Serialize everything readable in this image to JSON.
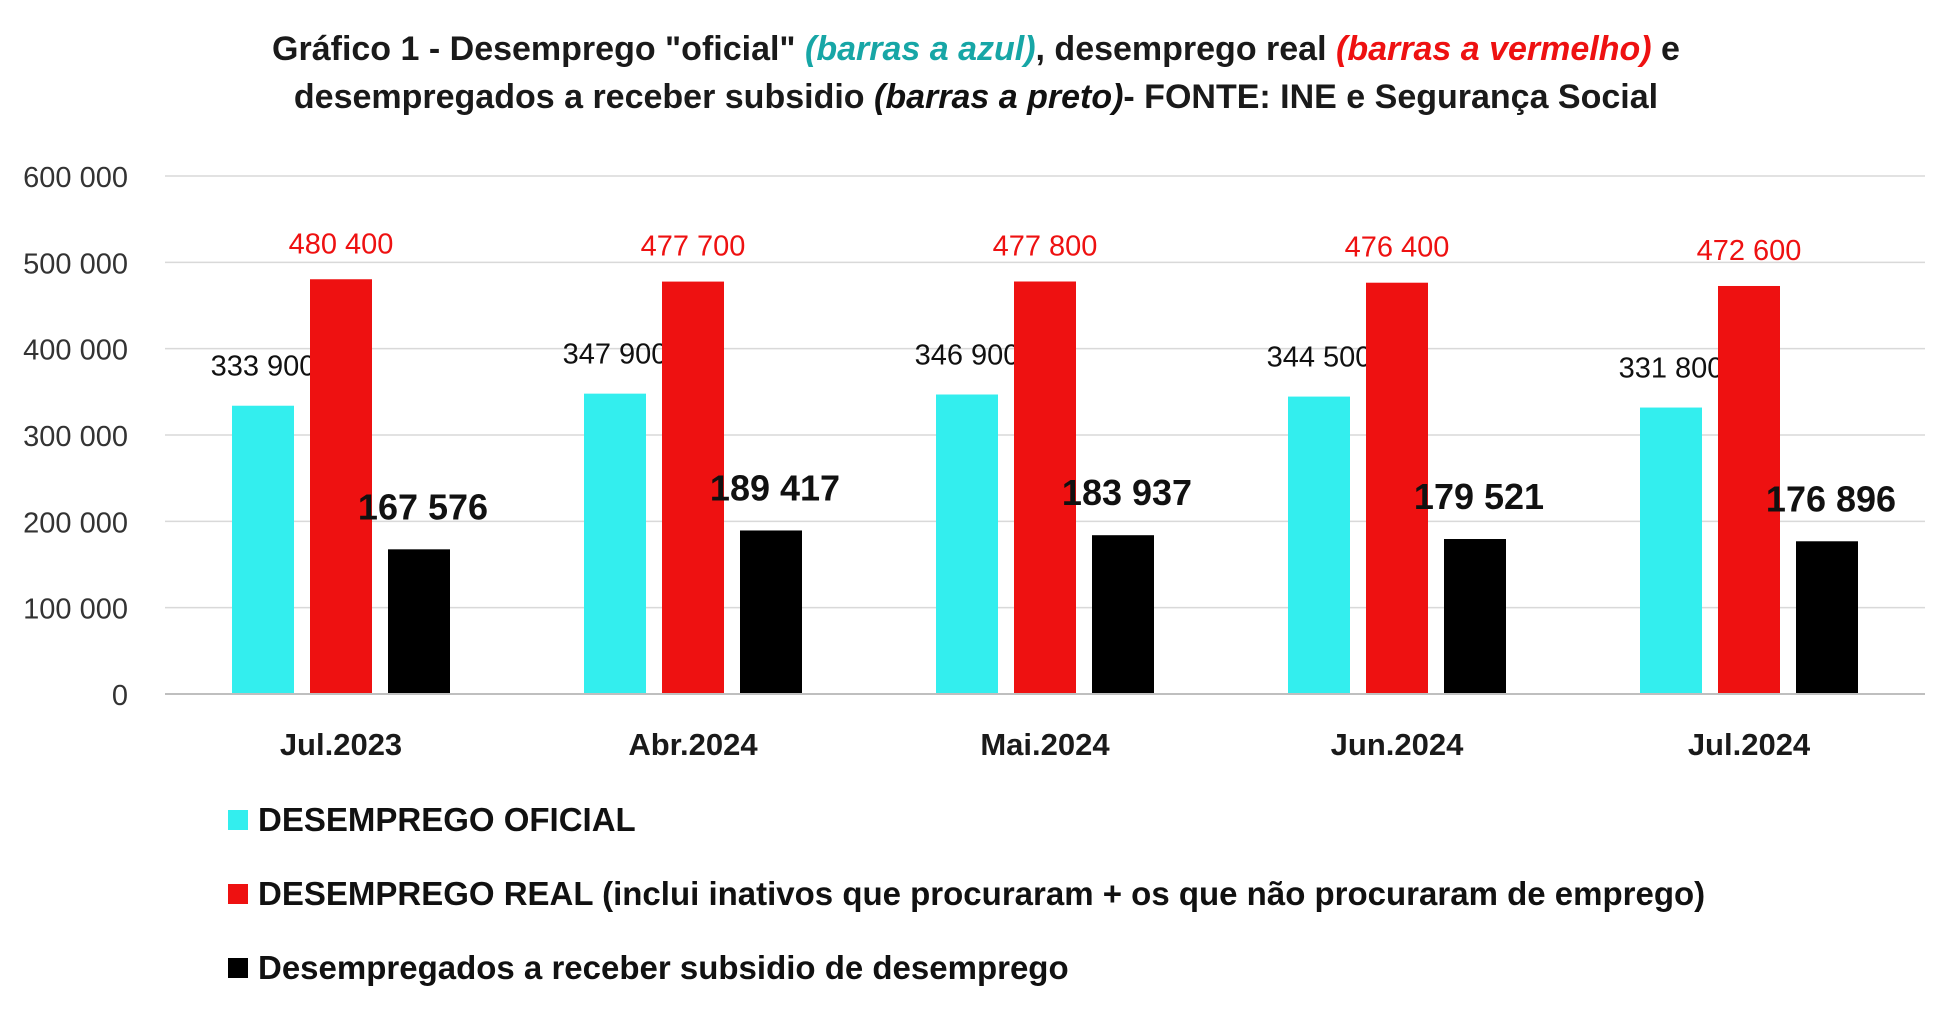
{
  "title": {
    "line1_a": "Gráfico 1 - Desemprego \"oficial\" ",
    "line1_b": "(barras a azul)",
    "line1_c": ", desemprego real ",
    "line1_d": "(barras a vermelho)",
    "line1_e": " e",
    "line2_a": "desempregados a receber subsidio ",
    "line2_b": "(barras a preto)",
    "line2_c": "- FONTE: INE e Segurança Social"
  },
  "colors": {
    "oficial": "#33eeee",
    "real": "#ee1111",
    "subsidio": "#000000",
    "grid": "#d9d9d9"
  },
  "chart_data": {
    "type": "bar",
    "categories": [
      "Jul.2023",
      "Abr.2024",
      "Mai.2024",
      "Jun.2024",
      "Jul.2024"
    ],
    "series": [
      {
        "name": "DESEMPREGO OFICIAL",
        "values": [
          333900,
          347900,
          346900,
          344500,
          331800
        ],
        "labels": [
          "333 900",
          "347 900",
          "346 900",
          "344 500",
          "331 800"
        ]
      },
      {
        "name": "DESEMPREGO REAL (inclui inativos que procuraram + os que não procuraram de emprego)",
        "values": [
          480400,
          477700,
          477800,
          476400,
          472600
        ],
        "labels": [
          "480 400",
          "477 700",
          "477 800",
          "476 400",
          "472 600"
        ]
      },
      {
        "name": "Desempregados a receber subsidio de desemprego",
        "values": [
          167576,
          189417,
          183937,
          179521,
          176896
        ],
        "labels": [
          "167 576",
          "189 417",
          "183 937",
          "179 521",
          "176 896"
        ]
      }
    ],
    "ylim": [
      0,
      600000
    ],
    "yticks": [
      "0",
      "100 000",
      "200 000",
      "300 000",
      "400 000",
      "500 000",
      "600 000"
    ],
    "grid": true,
    "legend_position": "bottom-left"
  }
}
